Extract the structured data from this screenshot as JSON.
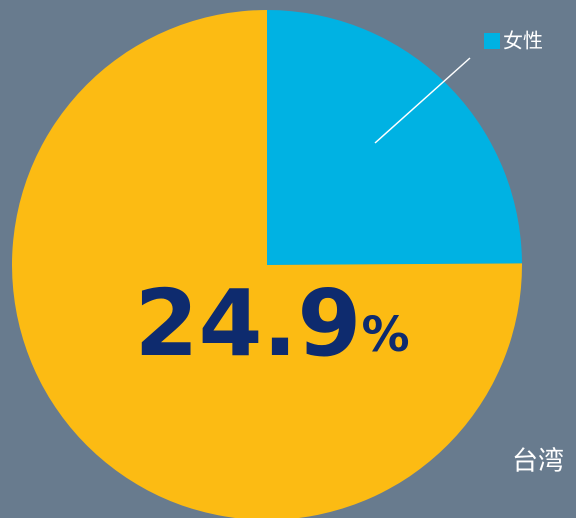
{
  "chart_data": {
    "type": "pie",
    "categories": [
      "女性",
      null
    ],
    "values": [
      24.9,
      75.1
    ],
    "value_labels": [
      "24.9%",
      null
    ],
    "colors": [
      "#00b2e3",
      "#fcbb13"
    ],
    "annotations": [
      "台湾"
    ]
  }
}
